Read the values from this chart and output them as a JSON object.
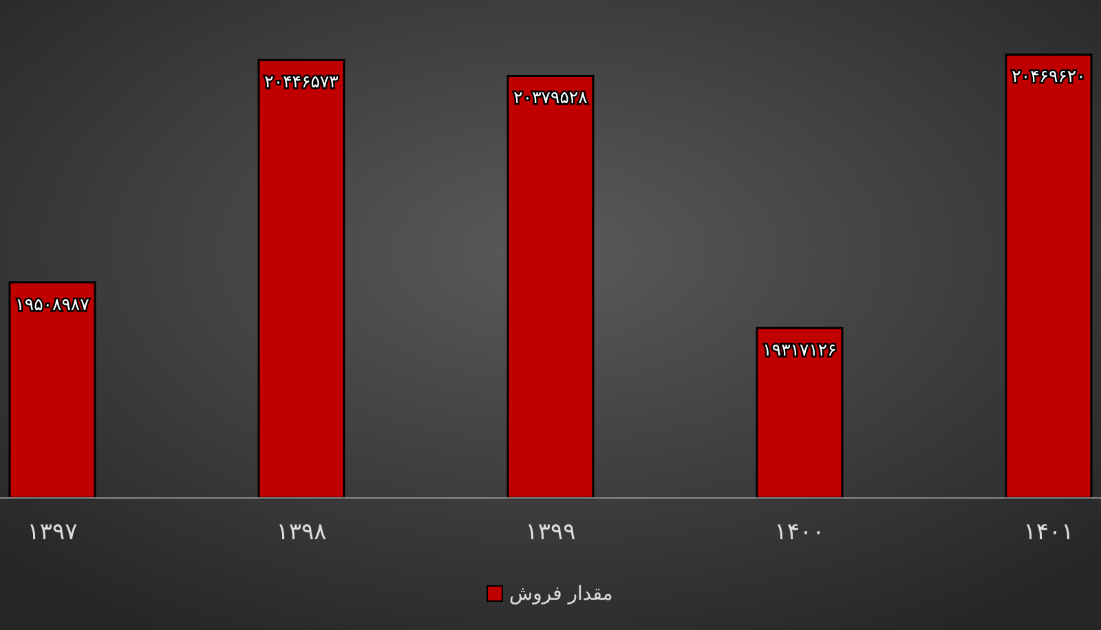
{
  "chart_data": {
    "type": "bar",
    "categories": [
      "۱۳۹۷",
      "۱۳۹۸",
      "۱۳۹۹",
      "۱۴۰۰",
      "۱۴۰۱"
    ],
    "series": [
      {
        "name": "مقدار فروش",
        "color": "#c00000",
        "values": [
          19508987,
          20446573,
          20379528,
          19317126,
          20469620
        ],
        "value_labels": [
          "۱۹۵۰۸۹۸۷",
          "۲۰۴۴۶۵۷۳",
          "۲۰۳۷۹۵۲۸",
          "۱۹۳۱۷۱۲۶",
          "۲۰۴۶۹۶۲۰"
        ]
      }
    ],
    "ylim": [
      18600000,
      20700000
    ],
    "tick_labels": "x",
    "legend": "bottom"
  }
}
